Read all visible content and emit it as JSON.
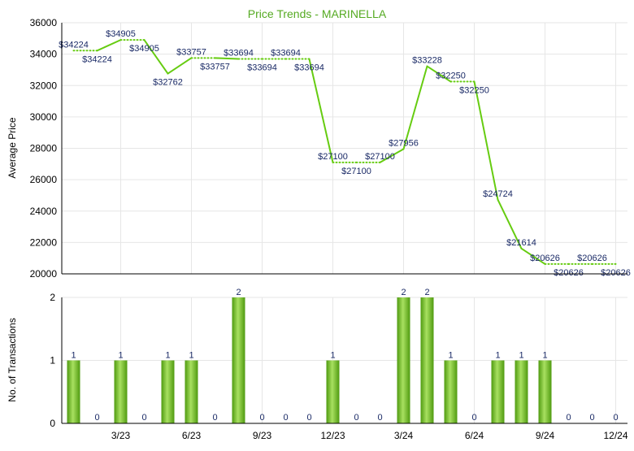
{
  "colors": {
    "line": "#66cc11",
    "bar": "#77c424",
    "bar_light": "#a8e060",
    "bar_dark": "#4f9a10",
    "title": "#55aa22",
    "label": "#1a2a66",
    "grid": "#e6e6e6",
    "axis": "#000000"
  },
  "chart_data": [
    {
      "type": "line",
      "title": "Price Trends - MARINELLA",
      "ylabel": "Average Price",
      "ylim": [
        20000,
        36000
      ],
      "yticks": [
        20000,
        22000,
        24000,
        26000,
        28000,
        30000,
        32000,
        34000,
        36000
      ],
      "grid": true,
      "values": [
        34224,
        34224,
        34905,
        34905,
        32762,
        33757,
        33757,
        33694,
        33694,
        33694,
        33694,
        27100,
        27100,
        27100,
        27956,
        33228,
        32250,
        32250,
        24724,
        21614,
        20626,
        20626,
        20626,
        20626
      ],
      "labels": [
        "$34224",
        "$34224",
        "$34905",
        "$34905",
        "$32762",
        "$33757",
        "$33757",
        "$33694",
        "$33694",
        "$33694",
        "$33694",
        "$27100",
        "$27100",
        "$27100",
        "$27956",
        "$33228",
        "$32250",
        "$32250",
        "$24724",
        "$21614",
        "$20626",
        "$20626",
        "$20626",
        "$20626"
      ],
      "label_sides": [
        "above",
        "below",
        "above",
        "below",
        "below",
        "above",
        "below",
        "above",
        "below",
        "above",
        "below",
        "above",
        "below",
        "above",
        "above",
        "above",
        "above",
        "below",
        "above",
        "above",
        "above",
        "below",
        "above",
        "below"
      ],
      "segments": [
        "dotted",
        "solid",
        "dotted",
        "solid",
        "solid",
        "dotted",
        "solid",
        "dotted",
        "dotted",
        "dotted",
        "solid",
        "dotted",
        "dotted",
        "solid",
        "solid",
        "solid",
        "dotted",
        "solid",
        "solid",
        "solid",
        "dotted",
        "dotted",
        "dotted"
      ]
    },
    {
      "type": "bar",
      "ylabel": "No. of Transactions",
      "ylim": [
        0,
        2
      ],
      "yticks": [
        0,
        1,
        2
      ],
      "grid": true,
      "values": [
        1,
        0,
        1,
        0,
        1,
        1,
        0,
        2,
        0,
        0,
        0,
        1,
        0,
        0,
        2,
        2,
        1,
        0,
        1,
        1,
        1,
        0,
        0,
        0
      ],
      "xtick_labels": [
        "3/23",
        "6/23",
        "9/23",
        "12/23",
        "3/24",
        "6/24",
        "9/24",
        "12/24"
      ]
    }
  ]
}
